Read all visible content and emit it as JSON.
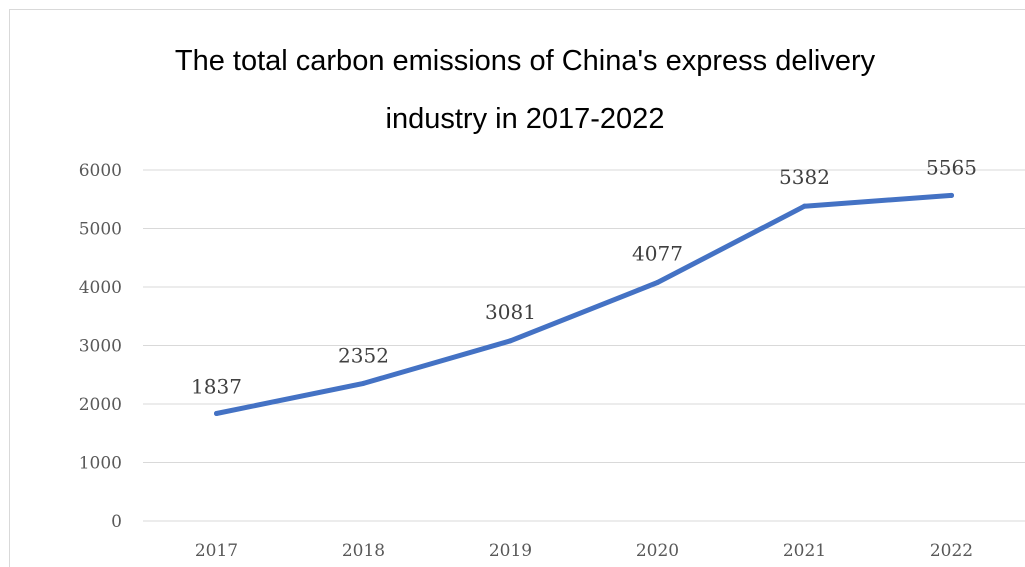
{
  "chart_data": {
    "type": "line",
    "title": "The total carbon emissions of China's express delivery industry in 2017-2022",
    "title_lines": [
      "The total carbon emissions of China's express delivery",
      "industry in 2017-2022"
    ],
    "categories": [
      "2017",
      "2018",
      "2019",
      "2020",
      "2021",
      "2022"
    ],
    "series": [
      {
        "values": [
          1837,
          2352,
          3081,
          4077,
          5382,
          5565
        ],
        "color": "#4472c4"
      }
    ],
    "data_labels": [
      "1837",
      "2352",
      "3081",
      "4077",
      "5382",
      "5565"
    ],
    "y_ticks": [
      "0",
      "1000",
      "2000",
      "3000",
      "4000",
      "5000",
      "6000"
    ],
    "ylim": [
      0,
      6000
    ],
    "xlabel": "",
    "ylabel": "",
    "grid": true,
    "legend": "none",
    "colors": {
      "line": "#4472c4",
      "grid": "#d9d9d9",
      "axis_text": "#595959",
      "data_label_text": "#404040",
      "title_text": "#000000"
    }
  }
}
